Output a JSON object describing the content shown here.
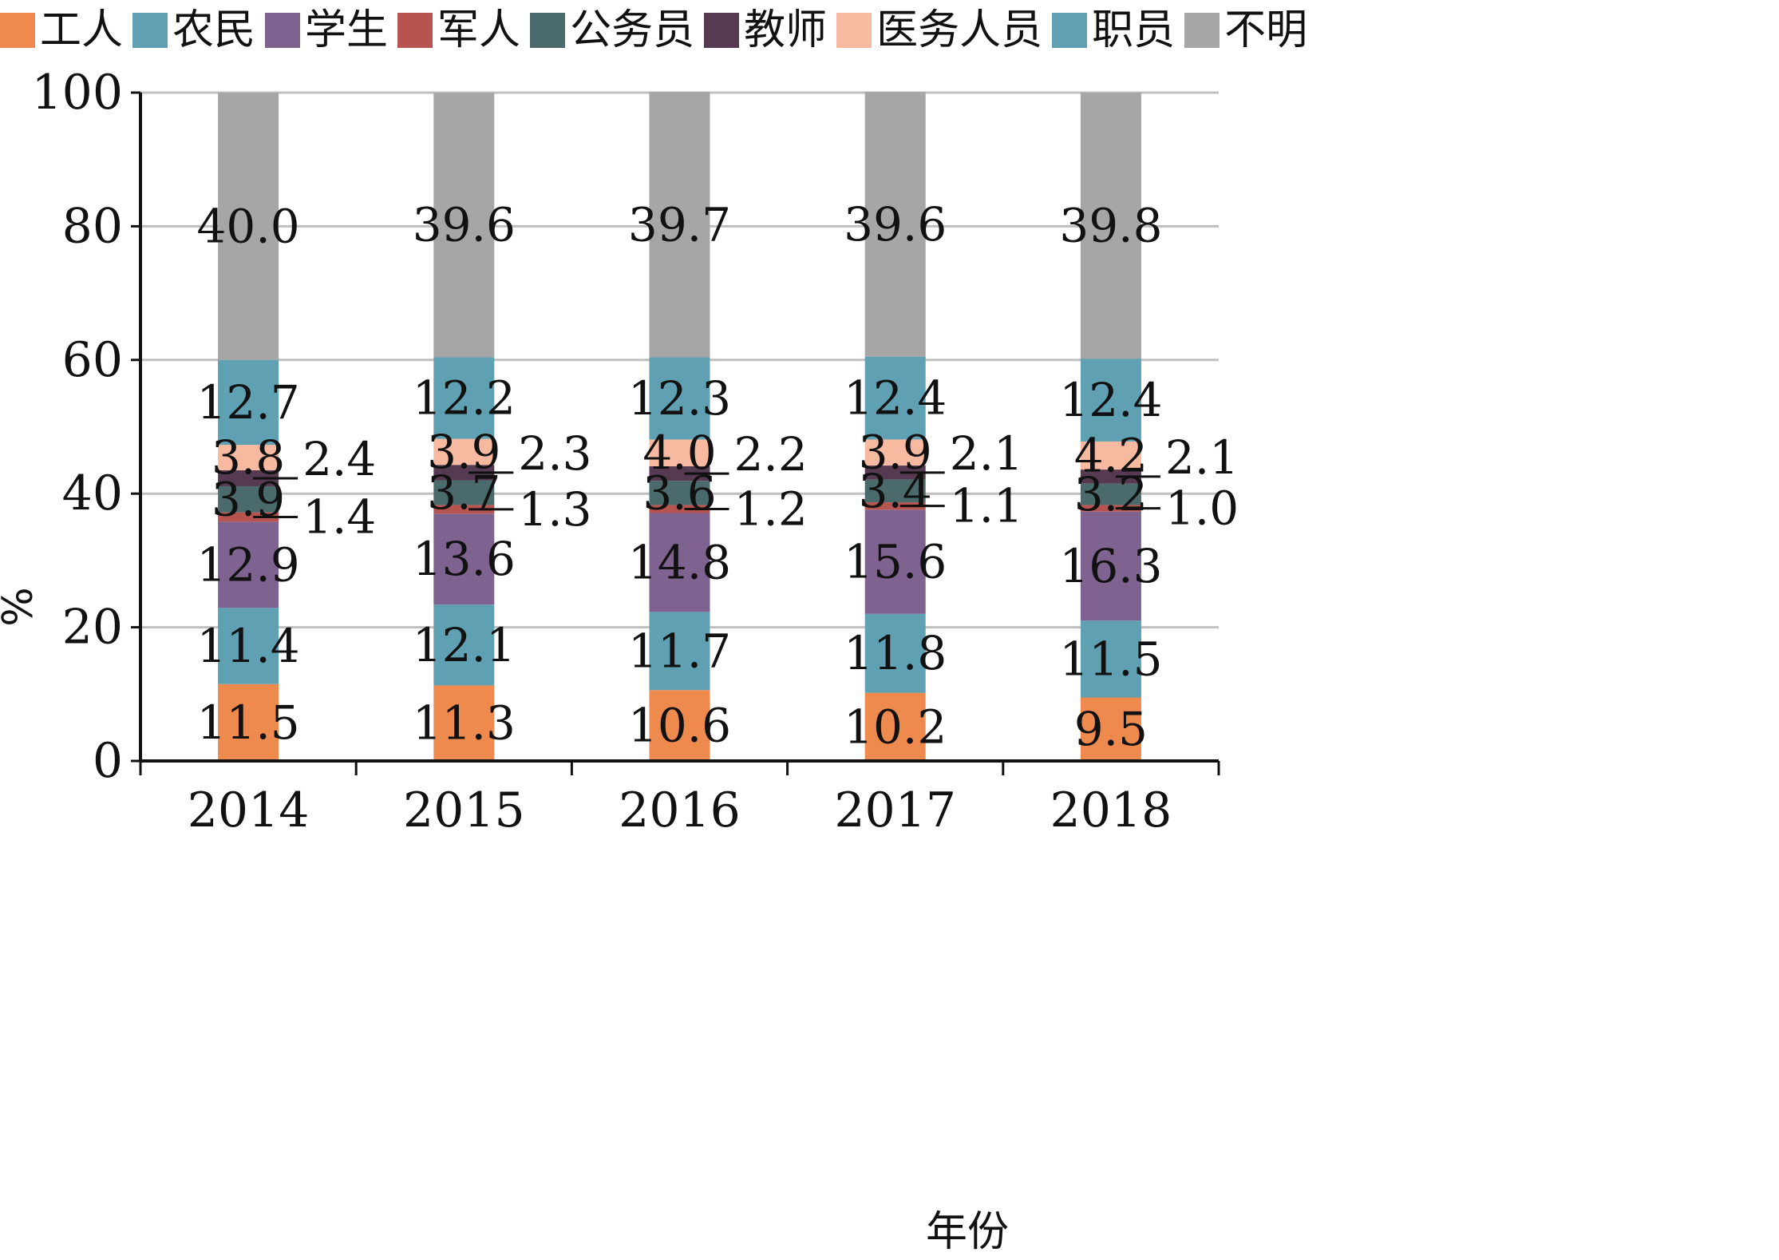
{
  "chart_data": {
    "type": "bar",
    "stacked": true,
    "xlabel": "年份",
    "ylabel": "%",
    "ylim": [
      0,
      100
    ],
    "yticks": [
      0,
      20,
      40,
      60,
      80,
      100
    ],
    "grid": true,
    "legend_position": "top",
    "categories": [
      "2014",
      "2015",
      "2016",
      "2017",
      "2018"
    ],
    "series": [
      {
        "name": "工人",
        "color": "#ef8a4f",
        "values": [
          11.5,
          11.3,
          10.6,
          10.2,
          9.5
        ],
        "labels": [
          "11.5",
          "11.3",
          "10.6",
          "10.2",
          "9.5"
        ]
      },
      {
        "name": "农民",
        "color": "#5fa0b3",
        "values": [
          11.4,
          12.1,
          11.7,
          11.8,
          11.5
        ],
        "labels": [
          "11.4",
          "12.1",
          "11.7",
          "11.8",
          "11.5"
        ]
      },
      {
        "name": "学生",
        "color": "#7e6390",
        "values": [
          12.9,
          13.6,
          14.8,
          15.6,
          16.3
        ],
        "labels": [
          "12.9",
          "13.6",
          "14.8",
          "15.6",
          "16.3"
        ]
      },
      {
        "name": "军人",
        "color": "#b85450",
        "values": [
          1.4,
          1.3,
          1.2,
          1.1,
          1.0
        ],
        "labels": [
          "1.4",
          "1.3",
          "1.2",
          "1.1",
          "1.0"
        ],
        "callout": true
      },
      {
        "name": "公务员",
        "color": "#4b6a6b",
        "values": [
          3.9,
          3.7,
          3.6,
          3.4,
          3.2
        ],
        "labels": [
          "3.9",
          "3.7",
          "3.6",
          "3.4",
          "3.2"
        ]
      },
      {
        "name": "教师",
        "color": "#553a52",
        "values": [
          2.4,
          2.3,
          2.2,
          2.1,
          2.1
        ],
        "labels": [
          "2.4",
          "2.3",
          "2.2",
          "2.1",
          "2.1"
        ],
        "callout": true
      },
      {
        "name": "医务人员",
        "color": "#f7b9a0",
        "values": [
          3.8,
          3.9,
          4.0,
          3.9,
          4.2
        ],
        "labels": [
          "3.8",
          "3.9",
          "4.0",
          "3.9",
          "4.2"
        ]
      },
      {
        "name": "职员",
        "color": "#5fa0b3",
        "values": [
          12.7,
          12.2,
          12.3,
          12.4,
          12.4
        ],
        "labels": [
          "12.7",
          "12.2",
          "12.3",
          "12.4",
          "12.4"
        ]
      },
      {
        "name": "不明",
        "color": "#a6a6a6",
        "values": [
          40.0,
          39.6,
          39.7,
          39.6,
          39.8
        ],
        "labels": [
          "40.0",
          "39.6",
          "39.7",
          "39.6",
          "39.8"
        ]
      }
    ]
  },
  "colors": {
    "axis": "#111111",
    "grid": "#bfbfbf"
  }
}
